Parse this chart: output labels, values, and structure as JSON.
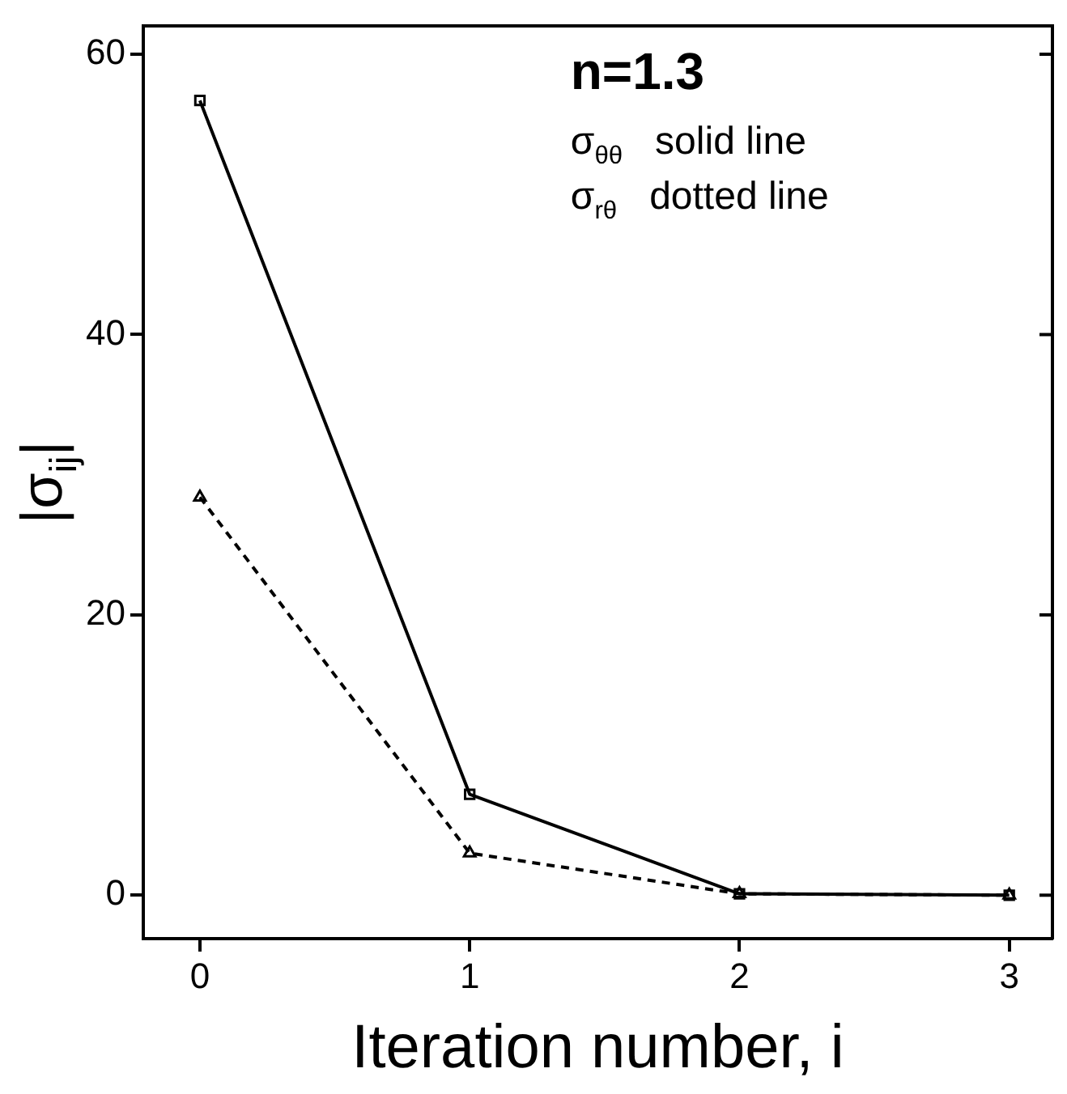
{
  "chart_data": {
    "type": "line",
    "xlabel": "Iteration number, i",
    "ylabel": "|σ$_{ij}$|",
    "x": [
      0,
      1,
      2,
      3
    ],
    "series": [
      {
        "color": "#000000",
        "marker": "square",
        "line_style": "solid",
        "values": [
          56.7,
          7.2,
          0.1,
          0
        ]
      },
      {
        "color": "#000000",
        "marker": "triangle",
        "line_style": "dashed",
        "values": [
          28.4,
          3.0,
          0.1,
          0
        ]
      }
    ],
    "xlim": [
      -0.21,
      3.16
    ],
    "ylim": [
      -3.1,
      62
    ],
    "xticks": [
      0,
      1,
      2,
      3
    ],
    "yticks": [
      0,
      20,
      40,
      60
    ],
    "grid": false,
    "annotations": [
      "n=1.3",
      "σ$_{θθ}$   solid line",
      "σ$_{rθ}$   dotted line"
    ]
  }
}
